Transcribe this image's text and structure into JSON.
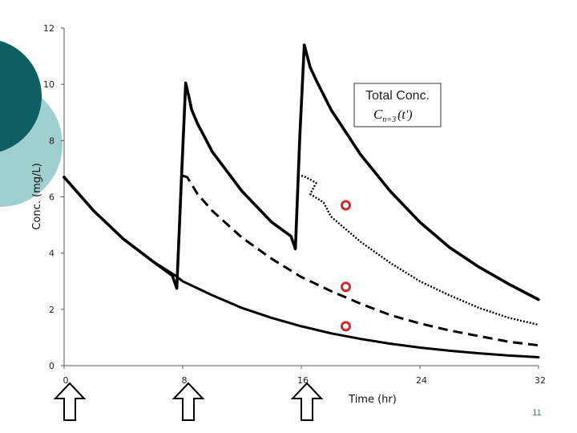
{
  "chart_data": {
    "type": "line",
    "xlabel": "Time (hr)",
    "ylabel": "Conc. (mg/L)",
    "xlim": [
      0,
      32
    ],
    "ylim": [
      0,
      12
    ],
    "x_ticks": [
      {
        "value": 0,
        "label": "0"
      },
      {
        "value": 8,
        "label": "8"
      },
      {
        "value": 16,
        "label": "16"
      },
      {
        "value": 24,
        "label": "24"
      },
      {
        "value": 32,
        "label": "32"
      }
    ],
    "y_ticks": [
      {
        "value": 0,
        "label": "0"
      },
      {
        "value": 2,
        "label": "2"
      },
      {
        "value": 4,
        "label": "4"
      },
      {
        "value": 6,
        "label": "6"
      },
      {
        "value": 8,
        "label": "8"
      },
      {
        "value": 10,
        "label": "10"
      },
      {
        "value": 12,
        "label": "12"
      }
    ],
    "dose_times": [
      0,
      8,
      16
    ],
    "series": [
      {
        "style": "solid",
        "x": [
          0,
          2,
          4,
          6,
          7.5,
          8,
          9,
          10,
          12,
          14,
          16,
          18,
          20,
          22,
          24,
          26,
          28,
          30,
          32
        ],
        "y": [
          6.7,
          5.5,
          4.5,
          3.7,
          3.2,
          3.0,
          2.75,
          2.5,
          2.05,
          1.7,
          1.4,
          1.15,
          0.95,
          0.78,
          0.64,
          0.53,
          0.44,
          0.36,
          0.3
        ]
      },
      {
        "style": "dashed",
        "x": [
          8,
          8.3,
          9,
          10,
          12,
          14,
          16,
          18,
          20,
          22,
          24,
          26,
          28,
          30,
          32
        ],
        "y": [
          6.75,
          6.7,
          6.1,
          5.5,
          4.55,
          3.8,
          3.15,
          2.65,
          2.2,
          1.8,
          1.5,
          1.25,
          1.05,
          0.85,
          0.72
        ]
      },
      {
        "style": "dotted",
        "x": [
          16,
          16.3,
          17,
          16.6,
          17.5,
          18,
          20,
          22,
          24,
          26,
          28,
          30,
          32
        ],
        "y": [
          6.75,
          6.7,
          6.5,
          6.1,
          5.8,
          5.3,
          4.4,
          3.65,
          3.0,
          2.5,
          2.05,
          1.7,
          1.45
        ]
      },
      {
        "name": "Total Conc.",
        "style": "solid-thick",
        "x": [
          0,
          2,
          4,
          6,
          7.3,
          7.6,
          7.9,
          8.2,
          8.4,
          8.6,
          9,
          10,
          12,
          14,
          15.3,
          15.6,
          15.9,
          16.2,
          16.4,
          16.6,
          17,
          18,
          20,
          22,
          24,
          26,
          28,
          30,
          32
        ],
        "y": [
          6.7,
          5.5,
          4.5,
          3.7,
          3.2,
          2.75,
          6.5,
          10.05,
          9.6,
          9.1,
          8.6,
          7.6,
          6.2,
          5.1,
          4.6,
          4.15,
          8.2,
          11.4,
          11.0,
          10.6,
          10.15,
          9.1,
          7.5,
          6.2,
          5.1,
          4.2,
          3.5,
          2.9,
          2.35
        ]
      }
    ],
    "markers": [
      {
        "x": 19,
        "y": 5.7
      },
      {
        "x": 19,
        "y": 2.8
      },
      {
        "x": 19,
        "y": 1.4
      }
    ],
    "legend": {
      "title": "Total Conc.",
      "formula": "C",
      "formula_subscript": "n=3",
      "formula_arg": "(t')"
    },
    "page_number": "11",
    "colors": {
      "line": "#000000",
      "marker": "#cc2a2a",
      "deco_dark": "#0e5f62",
      "deco_light": "#9fcfcf"
    }
  }
}
